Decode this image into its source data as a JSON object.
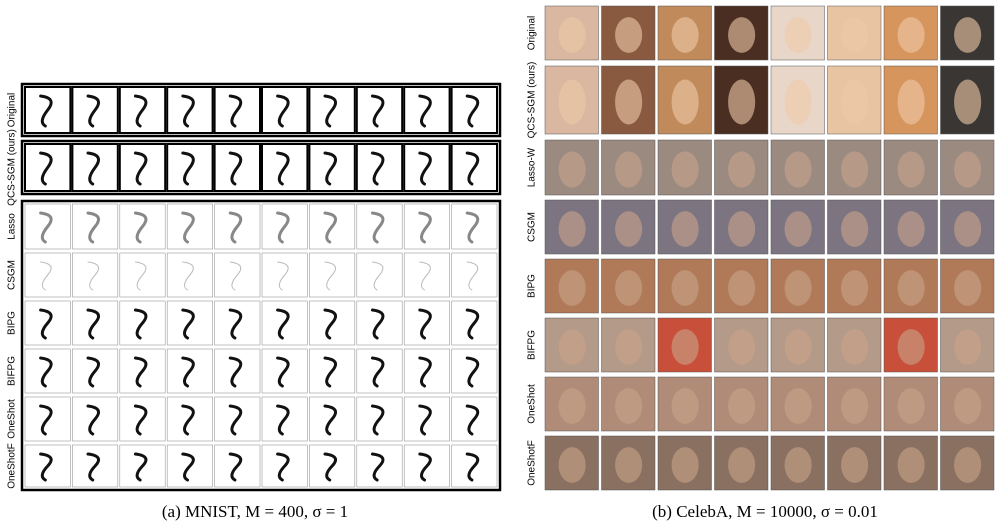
{
  "left_panel": {
    "row_labels": [
      "Original",
      "QCS-SGM (ours)",
      "Lasso",
      "CSGM",
      "BIPG",
      "BIFPG",
      "OneShot",
      "OneShotF"
    ],
    "caption": "(a) MNIST, M = 400, σ = 1"
  },
  "right_panel": {
    "row_labels": [
      "Original",
      "QCS-SGM (ours)",
      "Lasso-W",
      "CSGM",
      "BIPG",
      "BIFPG",
      "OneShot",
      "OneShotF"
    ],
    "caption": "(b) CelebA, M = 10000, σ = 0.01"
  }
}
